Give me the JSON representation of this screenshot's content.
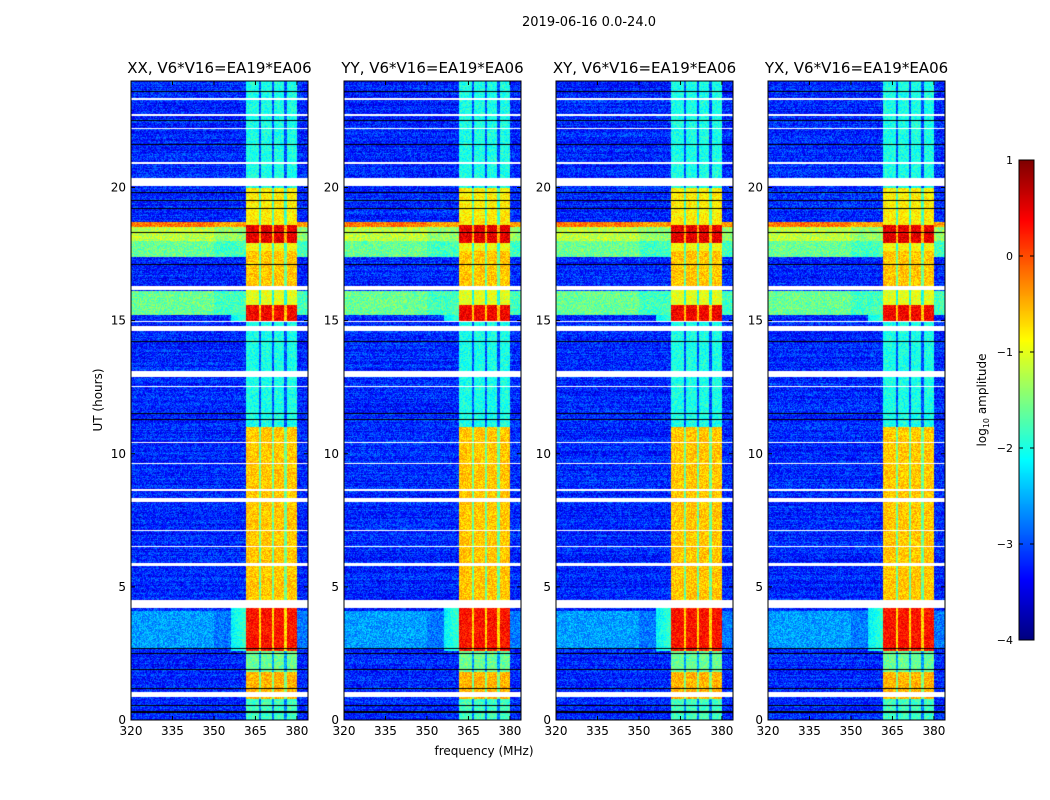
{
  "chart_data": {
    "type": "heatmap",
    "title": "2019-06-16 0.0-24.0",
    "xlabel": "frequency (MHz)",
    "ylabel": "UT (hours)",
    "xlim": [
      320,
      384
    ],
    "ylim": [
      0,
      24
    ],
    "xticks": [
      320,
      335,
      350,
      365,
      380
    ],
    "yticks": [
      0,
      5,
      10,
      15,
      20
    ],
    "colormap": "jet",
    "colorbar": {
      "label_prefix": "log",
      "label_sub": "10",
      "label_suffix": " amplitude",
      "range": [
        -4,
        1
      ],
      "ticks": [
        1,
        0,
        -1,
        -2,
        -3,
        -4
      ],
      "tick_labels": [
        "1",
        "0",
        "−1",
        "−2",
        "−3",
        "−4"
      ]
    },
    "panels": [
      {
        "title": "XX, V6*V16=EA19*EA06",
        "seed": 11
      },
      {
        "title": "YY, V6*V16=EA19*EA06",
        "seed": 23
      },
      {
        "title": "XY, V6*V16=EA19*EA06",
        "seed": 37
      },
      {
        "title": "YX, V6*V16=EA19*EA06",
        "seed": 51
      }
    ],
    "background_level": -3.2,
    "rfi_band": {
      "freq": [
        361.5,
        380
      ],
      "gaps_mhz": [
        366.6,
        371.3,
        375.9
      ]
    },
    "rfi_band_levels": [
      [
        0,
        0.8,
        -1.8
      ],
      [
        0.8,
        1.8,
        -0.5
      ],
      [
        1.8,
        2.6,
        -1.6
      ],
      [
        2.6,
        4.2,
        0.3
      ],
      [
        4.5,
        11.0,
        -0.6
      ],
      [
        11.0,
        15.0,
        -2.0
      ],
      [
        15.0,
        15.6,
        0.4
      ],
      [
        15.6,
        16.3,
        -1.0
      ],
      [
        16.3,
        17.6,
        -0.6
      ],
      [
        17.6,
        17.9,
        -0.9
      ],
      [
        17.9,
        18.6,
        0.5
      ],
      [
        18.6,
        20.0,
        -0.8
      ],
      [
        20.3,
        24,
        -2.0
      ]
    ],
    "broadband_levels": [
      [
        15.2,
        16.1,
        -1.6
      ],
      [
        17.4,
        18.0,
        -1.6
      ],
      [
        18.0,
        18.7,
        -1.2
      ],
      [
        18.5,
        18.7,
        -0.2
      ],
      [
        2.7,
        4.1,
        -2.6
      ]
    ],
    "flagged_rows_hours": [
      [
        0.85,
        1.05
      ],
      [
        4.2,
        4.5
      ],
      [
        5.8,
        5.88
      ],
      [
        6.5,
        6.55
      ],
      [
        7.1,
        7.15
      ],
      [
        8.2,
        8.35
      ],
      [
        8.6,
        8.68
      ],
      [
        9.6,
        9.65
      ],
      [
        10.4,
        10.45
      ],
      [
        12.5,
        12.55
      ],
      [
        12.9,
        13.1
      ],
      [
        14.6,
        14.8
      ],
      [
        14.95,
        15.0
      ],
      [
        16.15,
        16.3
      ],
      [
        20.05,
        20.35
      ],
      [
        20.9,
        20.95
      ],
      [
        22.2,
        22.25
      ],
      [
        22.7,
        22.75
      ],
      [
        23.3,
        23.35
      ]
    ],
    "dark_rows_hours": [
      0.3,
      0.55,
      1.2,
      1.9,
      2.5,
      2.7,
      11.3,
      11.5,
      14.2,
      17.1,
      18.3,
      19.2,
      19.5,
      19.8,
      21.6,
      22.5,
      23.6
    ]
  }
}
